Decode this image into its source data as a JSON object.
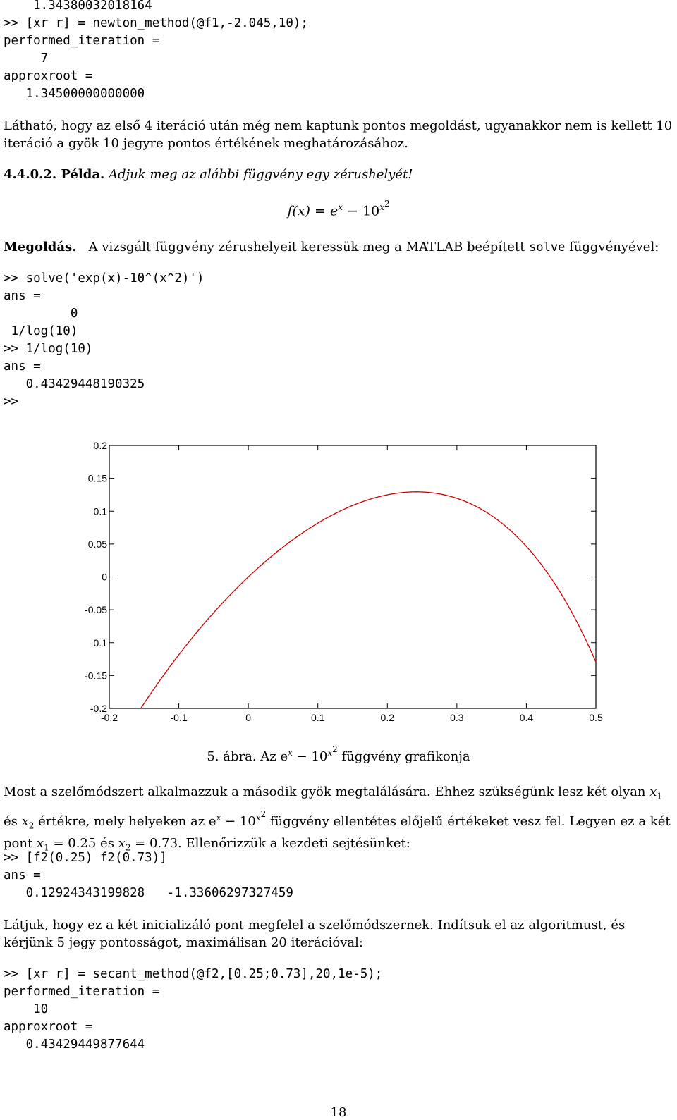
{
  "code1": {
    "lines": [
      "    1.34380032018164",
      ">> [xr r] = newton_method(@f1,-2.045,10);",
      "performed_iteration =",
      "     7",
      "approxroot =",
      "   1.34500000000000"
    ]
  },
  "para1": "Látható, hogy az első 4 iteráció után még nem kaptunk pontos megoldást, ugyanakkor nem is kellett 10 iteráció a gyök 10 jegyre pontos értékének meghatározásához.",
  "example": {
    "label": "4.4.0.2. Példa.",
    "text": "Adjuk meg az alábbi függvény egy zérushelyét!"
  },
  "formula": {
    "lhs": "f(x) = e",
    "exp1": "x",
    "minus": " − 10",
    "exp2": "x",
    "exp2_sup": "2"
  },
  "solution": {
    "label": "Megoldás.",
    "text_before": "A vizsgált függvény zérushelyeit keressük meg a MATLAB beépített",
    "code_word": "solve",
    "text_after": "függvényével:"
  },
  "code2": {
    "lines": [
      ">> solve('exp(x)-10^(x^2)')",
      "ans =",
      "         0",
      " 1/log(10)",
      ">> 1/log(10)",
      "ans =",
      "   0.43429448190325",
      ">>"
    ]
  },
  "chart_data": {
    "type": "line",
    "function": "exp(x) - 10^(x^2)",
    "xlim": [
      -0.2,
      0.5
    ],
    "ylim": [
      -0.2,
      0.2
    ],
    "x_ticks": [
      "-0.2",
      "-0.1",
      "0",
      "0.1",
      "0.2",
      "0.3",
      "0.4",
      "0.5"
    ],
    "y_ticks": [
      "0.2",
      "0.15",
      "0.1",
      "0.05",
      "0",
      "-0.05",
      "-0.1",
      "-0.15",
      "-0.2"
    ],
    "line_color": "#cc0000",
    "grid": false,
    "x": [
      -0.2,
      -0.15,
      -0.1,
      -0.05,
      0,
      0.05,
      0.1,
      0.15,
      0.2,
      0.25,
      0.3,
      0.35,
      0.4,
      0.45,
      0.5
    ],
    "y": [
      -0.275,
      -0.195,
      -0.128,
      -0.074,
      0.0,
      0.045,
      0.082,
      0.109,
      0.125,
      0.129,
      0.119,
      0.092,
      0.045,
      -0.025,
      -0.129
    ]
  },
  "caption": {
    "prefix": "5. ábra. Az e",
    "exp1": "x",
    "minus": " − 10",
    "exp2": "x",
    "exp2_sup": "2",
    "suffix": " függvény grafikonja"
  },
  "para2": {
    "t1": "Most a szelőmódszert alkalmazzuk a második gyök megtalálására. Ehhez szükségünk lesz két olyan ",
    "x1": "x",
    "sub1": "1",
    "t2": "és ",
    "x2": "x",
    "sub2": "2",
    "t3": " értékre, mely helyeken az e",
    "e_exp": "x",
    "t4": " − 10",
    "ten_exp": "x",
    "ten_exp_sup": "2",
    "t5": " függvény ellentétes előjelű értékeket vesz fel. Legyen ez a két pont ",
    "x1b": "x",
    "sub1b": "1",
    "t6": " = 0.25 és ",
    "x2b": "x",
    "sub2b": "2",
    "t7": " = 0.73. Ellenőrizzük a kezdeti sejtésünket:"
  },
  "code3": {
    "lines": [
      ">> [f2(0.25) f2(0.73)]",
      "ans =",
      "   0.12924343199828   -1.33606297327459"
    ]
  },
  "para3": "Látjuk, hogy ez a két inicializáló pont megfelel a szelőmódszernek. Indítsuk el az algoritmust, és kérjünk 5 jegy pontosságot, maximálisan 20 iterációval:",
  "code4": {
    "lines": [
      ">> [xr r] = secant_method(@f2,[0.25;0.73],20,1e-5);",
      "performed_iteration =",
      "    10",
      "approxroot =",
      "   0.43429449877644"
    ]
  },
  "page_number": "18"
}
